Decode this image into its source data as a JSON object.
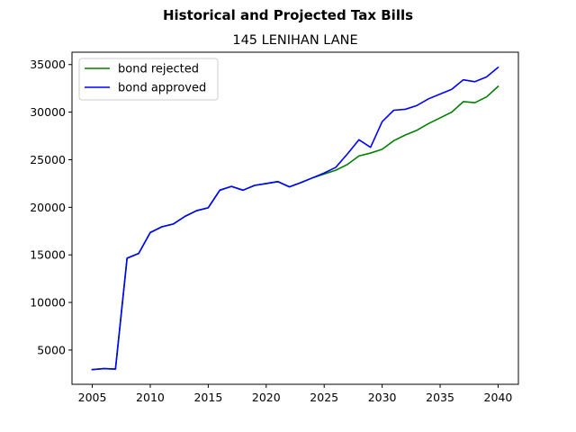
{
  "chart_data": {
    "type": "line",
    "suptitle": "Historical and Projected Tax Bills",
    "title": "145 LENIHAN LANE",
    "xlabel": "",
    "ylabel": "",
    "xlim": [
      2003.25,
      2041.75
    ],
    "ylim": [
      1400,
      36300
    ],
    "xticks": [
      2005,
      2010,
      2015,
      2020,
      2025,
      2030,
      2035,
      2040
    ],
    "yticks": [
      5000,
      10000,
      15000,
      20000,
      25000,
      30000,
      35000
    ],
    "grid": false,
    "legend_position": "upper left",
    "x": [
      2005,
      2006,
      2007,
      2008,
      2009,
      2010,
      2011,
      2012,
      2013,
      2014,
      2015,
      2016,
      2017,
      2018,
      2019,
      2020,
      2021,
      2022,
      2023,
      2024,
      2025,
      2026,
      2027,
      2028,
      2029,
      2030,
      2031,
      2032,
      2033,
      2034,
      2035,
      2036,
      2037,
      2038,
      2039,
      2040
    ],
    "series": [
      {
        "name": "bond rejected",
        "color": "#008000",
        "values": [
          2950,
          3050,
          3000,
          14650,
          15150,
          17350,
          17950,
          18250,
          19050,
          19650,
          19950,
          21800,
          22200,
          21800,
          22300,
          22500,
          22700,
          22150,
          22600,
          23100,
          23500,
          23900,
          24500,
          25400,
          25700,
          26100,
          27000,
          27600,
          28100,
          28800,
          29400,
          30000,
          31100,
          31000,
          31600,
          32700
        ]
      },
      {
        "name": "bond approved",
        "color": "#0000ff",
        "values": [
          2950,
          3050,
          3000,
          14650,
          15150,
          17350,
          17950,
          18250,
          19050,
          19650,
          19950,
          21800,
          22200,
          21800,
          22300,
          22500,
          22700,
          22150,
          22600,
          23100,
          23600,
          24200,
          25600,
          27100,
          26300,
          29000,
          30200,
          30300,
          30700,
          31400,
          31900,
          32400,
          33400,
          33200,
          33700,
          34700
        ]
      }
    ]
  }
}
